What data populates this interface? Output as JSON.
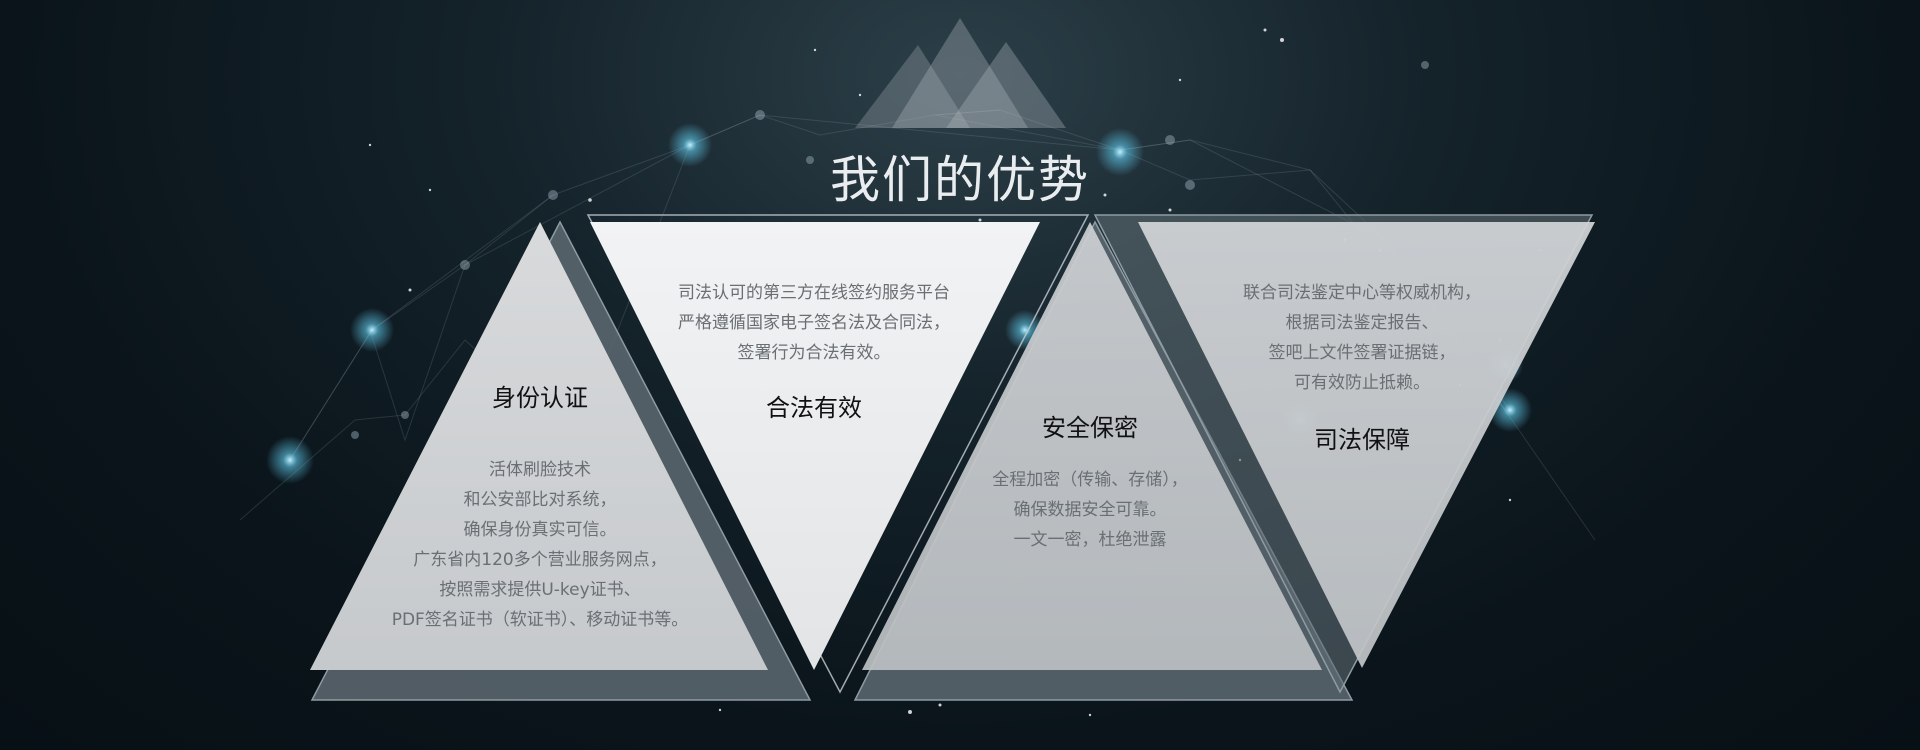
{
  "header": {
    "title": "我们的优势"
  },
  "cards": [
    {
      "title": "身份认证",
      "lines": [
        "活体刷脸技术",
        "和公安部比对系统，",
        "确保身份真实可信。",
        "广东省内120多个营业服务网点，",
        "按照需求提供U-key证书、",
        "PDF签名证书（软证书）、移动证书等。"
      ]
    },
    {
      "title": "合法有效",
      "lines": [
        "司法认可的第三方在线签约服务平台",
        "严格遵循国家电子签名法及合同法，",
        "签署行为合法有效。"
      ]
    },
    {
      "title": "安全保密",
      "lines": [
        "全程加密（传输、存储），",
        "确保数据安全可靠。",
        "一文一密，杜绝泄露"
      ]
    },
    {
      "title": "司法保障",
      "lines": [
        "联合司法鉴定中心等权威机构，",
        "根据司法鉴定报告、",
        "签吧上文件签署证据链，",
        "可有效防止抵赖。"
      ]
    }
  ]
}
